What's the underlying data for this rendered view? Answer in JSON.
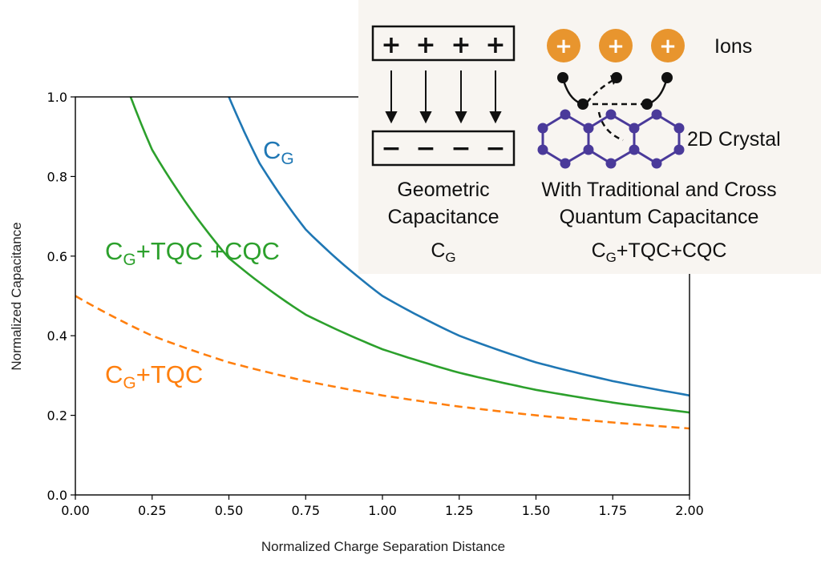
{
  "chart_data": {
    "type": "line",
    "xlabel": "Normalized Charge Separation Distance",
    "ylabel": "Normalized Capacitance",
    "xlim": [
      0.0,
      2.0
    ],
    "ylim": [
      0.0,
      1.0
    ],
    "xticks": [
      "0.00",
      "0.25",
      "0.50",
      "0.75",
      "1.00",
      "1.25",
      "1.50",
      "1.75",
      "2.00"
    ],
    "yticks": [
      "0.0",
      "0.2",
      "0.4",
      "0.6",
      "0.8",
      "1.0"
    ],
    "grid": false,
    "series": [
      {
        "name": "CG",
        "label_main": "C",
        "label_sub": "G",
        "label_rest": "",
        "color": "#1f77b4",
        "dash": "solid",
        "x": [
          0.5,
          0.6,
          0.75,
          1.0,
          1.25,
          1.5,
          1.75,
          2.0
        ],
        "y": [
          1.0,
          0.833,
          0.667,
          0.5,
          0.4,
          0.333,
          0.286,
          0.25
        ]
      },
      {
        "name": "CG+TQC +CQC",
        "label_main": "C",
        "label_sub": "G",
        "label_rest": "+TQC +CQC",
        "color": "#2ca02c",
        "dash": "solid",
        "x": [
          0.18,
          0.25,
          0.5,
          0.75,
          1.0,
          1.25,
          1.5,
          1.75,
          2.0
        ],
        "y": [
          1.0,
          0.867,
          0.595,
          0.453,
          0.366,
          0.307,
          0.264,
          0.232,
          0.207
        ]
      },
      {
        "name": "CG+TQC",
        "label_main": "C",
        "label_sub": "G",
        "label_rest": "+TQC",
        "color": "#ff7f0e",
        "dash": "dashed",
        "x": [
          0.0,
          0.25,
          0.5,
          0.75,
          1.0,
          1.25,
          1.5,
          1.75,
          2.0
        ],
        "y": [
          0.5,
          0.4,
          0.333,
          0.286,
          0.25,
          0.222,
          0.2,
          0.182,
          0.167
        ]
      }
    ]
  },
  "inset": {
    "plus_sign": "+",
    "minus_sign": "−",
    "ions_label": "Ions",
    "crystal_label": "2D Crystal",
    "geometric_line1": "Geometric",
    "geometric_line2": "Capacitance",
    "cg_main": "C",
    "cg_sub": "G",
    "quantum_line1": "With Traditional and Cross",
    "quantum_line2": "Quantum Capacitance",
    "combo_main": "C",
    "combo_sub": "G",
    "combo_rest": "+TQC+CQC",
    "ion_color": "#e8952e",
    "crystal_color": "#4a3a9a"
  }
}
